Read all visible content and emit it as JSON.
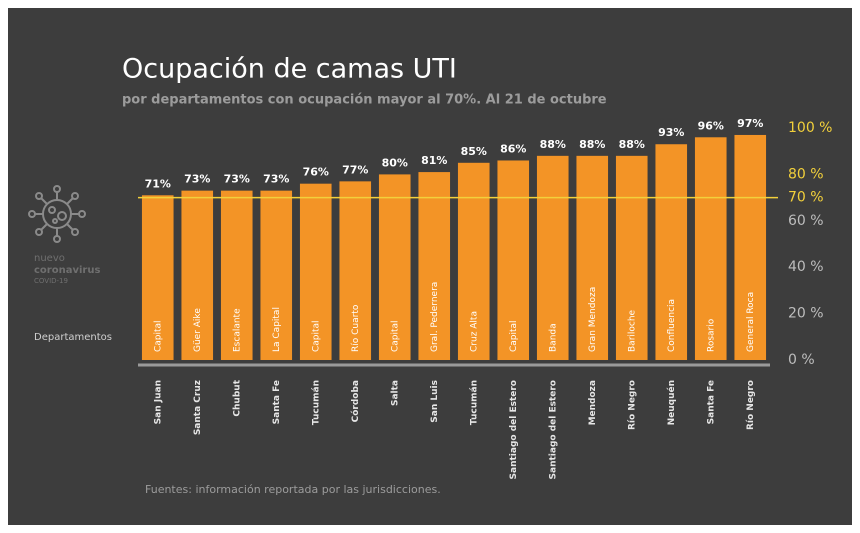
{
  "chart_data": {
    "type": "bar",
    "title": "Ocupación de camas UTI",
    "subtitle": "por departamentos con ocupación mayor al 70%. Al 21 de octubre",
    "categories": [
      "Capital",
      "Güer Aike",
      "Escalante",
      "La Capital",
      "Capital",
      "Río Cuarto",
      "Capital",
      "Gral. Pedernera",
      "Cruz Alta",
      "Capital",
      "Banda",
      "Gran Mendoza",
      "Bariloche",
      "Confluencia",
      "Rosario",
      "General Roca"
    ],
    "provinces": [
      "San Juan",
      "Santa Cruz",
      "Chubut",
      "Santa Fe",
      "Tucumán",
      "Córdoba",
      "Salta",
      "San Luis",
      "Tucumán",
      "Santiago del Estero",
      "Santiago del Estero",
      "Mendoza",
      "Río Negro",
      "Neuquén",
      "Santa Fe",
      "Río Negro"
    ],
    "values": [
      71,
      73,
      73,
      73,
      76,
      77,
      80,
      81,
      85,
      86,
      88,
      88,
      88,
      93,
      96,
      97
    ],
    "value_labels": [
      "71%",
      "73%",
      "73%",
      "73%",
      "76%",
      "77%",
      "80%",
      "81%",
      "85%",
      "86%",
      "88%",
      "88%",
      "88%",
      "93%",
      "96%",
      "97%"
    ],
    "color": "#f39426",
    "ylim": [
      0,
      100
    ],
    "yticks": [
      {
        "value": 0,
        "label": "0 %"
      },
      {
        "value": 20,
        "label": "20 %"
      },
      {
        "value": 40,
        "label": "40 %"
      },
      {
        "value": 60,
        "label": "60 %"
      },
      {
        "value": 70,
        "label": "70 %"
      },
      {
        "value": 80,
        "label": "80 %"
      },
      {
        "value": 100,
        "label": "100 %"
      }
    ],
    "ytick_colors": [
      "#bdbdbd",
      "#bdbdbd",
      "#bdbdbd",
      "#bdbdbd",
      "#f2d03b",
      "#f2d03b",
      "#f2d03b"
    ],
    "reference_line": {
      "value": 70,
      "color": "#f2d03b"
    },
    "brand_lines": [
      "nuevo",
      "coronavirus",
      "COVID-19"
    ],
    "row_label": "Departamentos",
    "source": "Fuentes: información reportada por las jurisdicciones."
  }
}
